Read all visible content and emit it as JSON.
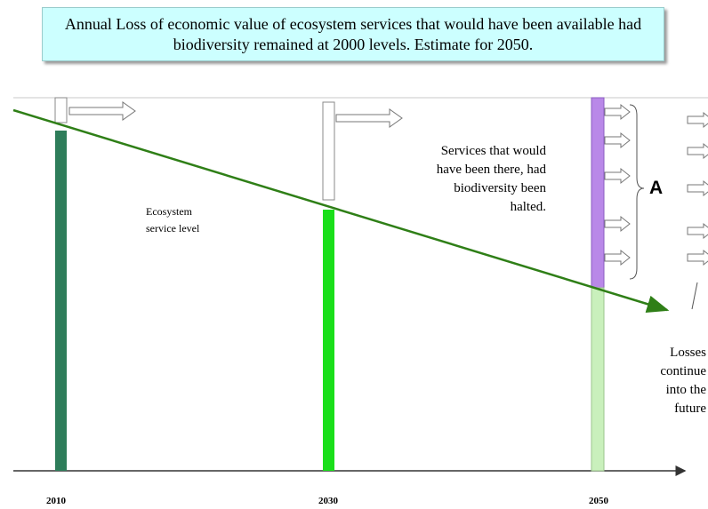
{
  "title": "Annual Loss of economic value of ecosystem services that would have been available had biodiversity remained at 2000 levels. Estimate for 2050.",
  "labels": {
    "ecosystem_service_level": "Ecosystem\nservice level",
    "services_had_halted": "Services that would\nhave been there, had\nbiodiversity been\nhalted.",
    "area_marker": "A",
    "losses_continue": "Losses\ncontinue\ninto the\nfuture"
  },
  "years": [
    "2010",
    "2030",
    "2050"
  ],
  "colors": {
    "title_bg": "#ccffff",
    "trend_line": "#2f7f17",
    "bar_2010": "#2e7d5a",
    "bar_2030": "#1adf1a",
    "bar_2050_lower": "#c9f0bc",
    "bar_2050_loss": "#b988e8"
  }
}
